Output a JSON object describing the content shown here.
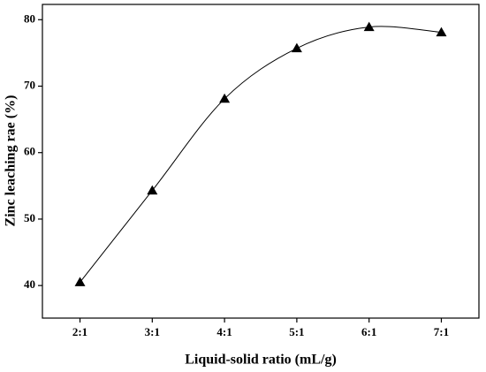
{
  "chart_data": {
    "type": "line",
    "x_label": "Liquid-solid ratio (mL/g)",
    "y_label": "Zinc leaching rae (%)",
    "categories": [
      "2:1",
      "3:1",
      "4:1",
      "5:1",
      "6:1",
      "7:1"
    ],
    "values": [
      40.5,
      54.3,
      68.1,
      75.7,
      78.9,
      78.1
    ],
    "color": "#000000",
    "marker": "triangle",
    "ylim": [
      35.1,
      82.3
    ],
    "yticks": [
      40,
      50,
      60,
      70,
      80
    ],
    "grid": false
  }
}
